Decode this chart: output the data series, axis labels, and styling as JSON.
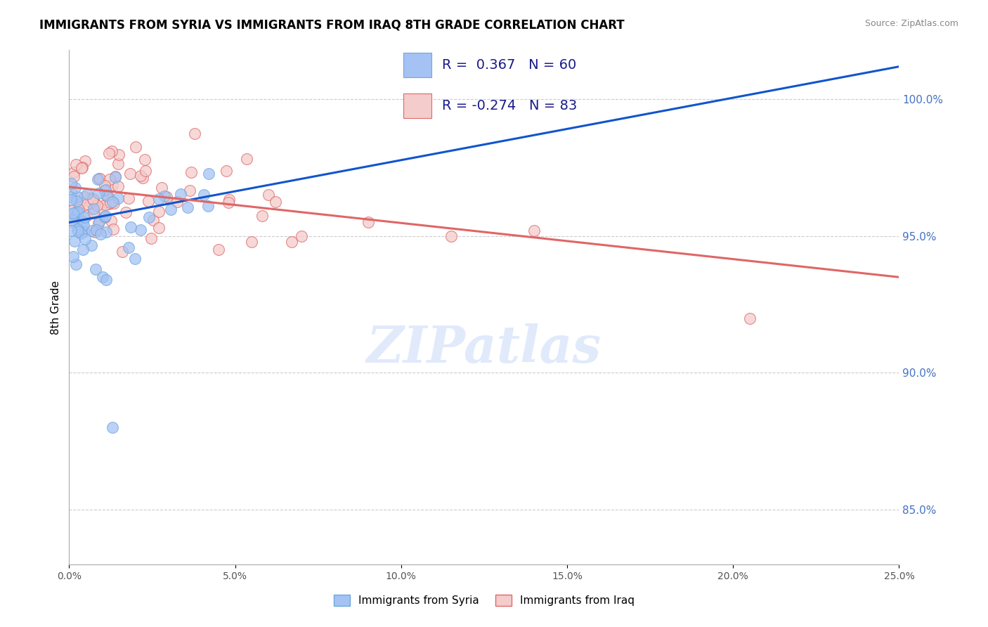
{
  "title": "IMMIGRANTS FROM SYRIA VS IMMIGRANTS FROM IRAQ 8TH GRADE CORRELATION CHART",
  "source": "Source: ZipAtlas.com",
  "ylabel": "8th Grade",
  "xmin": 0.0,
  "xmax": 25.0,
  "ymin": 83.0,
  "ymax": 101.8,
  "r_syria": 0.367,
  "n_syria": 60,
  "r_iraq": -0.274,
  "n_iraq": 83,
  "color_syria": "#a4c2f4",
  "color_iraq": "#f4cccc",
  "color_syria_line": "#1155cc",
  "color_iraq_line": "#e06666",
  "color_syria_edge": "#6fa8dc",
  "color_iraq_edge": "#e06666",
  "legend_label_syria": "Immigrants from Syria",
  "legend_label_iraq": "Immigrants from Iraq",
  "ytick_positions": [
    85.0,
    90.0,
    95.0,
    100.0
  ],
  "ytick_labels": [
    "85.0%",
    "90.0%",
    "95.0%",
    "100.0%"
  ],
  "xtick_positions": [
    0,
    5,
    10,
    15,
    20,
    25
  ],
  "xtick_labels": [
    "0.0%",
    "5.0%",
    "10.0%",
    "15.0%",
    "20.0%",
    "25.0%"
  ],
  "syria_line_x0": 0.0,
  "syria_line_y0": 95.5,
  "syria_line_x1": 25.0,
  "syria_line_y1": 101.2,
  "iraq_line_x0": 0.0,
  "iraq_line_y0": 96.8,
  "iraq_line_x1": 25.0,
  "iraq_line_y1": 93.5,
  "watermark_text": "ZIPatlas",
  "watermark_color": "#c9daf8"
}
